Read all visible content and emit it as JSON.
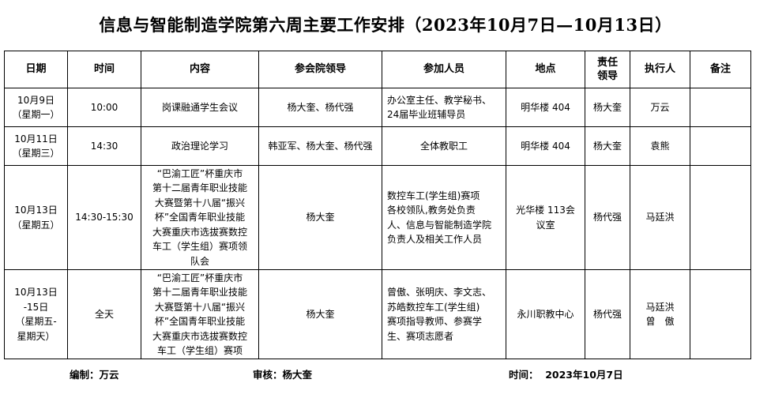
{
  "title": "信息与智能制造学院第六周主要工作安排（2023年10月7日—10月13日）",
  "table": {
    "headers": [
      "日期",
      "时间",
      "内容",
      "参会院领导",
      "参加人员",
      "地点",
      "责任\n领导",
      "执行人",
      "备注"
    ],
    "rows": [
      {
        "date": "10月9日\n（星期一）",
        "time": "10:00",
        "content": "岗课融通学生会议",
        "leaders": "杨大奎、杨代强",
        "participants": "办公室主任、教学秘书、\n24届毕业班辅导员",
        "location": "明华楼 404",
        "responsible": "杨大奎",
        "executor": "万云",
        "note": ""
      },
      {
        "date": "10月11日\n（星期三）",
        "time": "14:30",
        "content": "政治理论学习",
        "leaders": "韩亚军、杨大奎、杨代强",
        "participants": "全体教职工",
        "location": "明华楼 404",
        "responsible": "杨大奎",
        "executor": "袁熊",
        "note": ""
      },
      {
        "date": "10月13日\n（星期五）",
        "time": "14:30-15:30",
        "content": "“巴渝工匠”杯重庆市\n第十二届青年职业技能\n大赛暨第十八届“振兴\n杯”全国青年职业技能\n大赛重庆市选拔赛数控\n车工（学生组）赛项领\n队会",
        "leaders": "杨大奎",
        "participants": "数控车工(学生组)赛项\n各校领队,教务处负责\n人、信息与智能制造学院\n负责人及相关工作人员",
        "location": "光华楼 113会\n议室",
        "responsible": "杨代强",
        "executor": "马廷洪",
        "note": ""
      },
      {
        "date": "10月13日\n-15日\n（星期五-\n星期天）",
        "time": "全天",
        "content": "“巴渝工匠”杯重庆市\n第十二届青年职业技能\n大赛暨第十八届“振兴\n杯”全国青年职业技能\n大赛重庆市选拔赛数控\n车工（学生组）赛项",
        "leaders": "杨大奎",
        "participants": "曾傲、张明庆、李文志、\n苏皓数控车工(学生组)\n赛项指导教师、参赛学\n生、赛项志愿者",
        "location": "永川职教中心",
        "responsible": "杨代强",
        "executor": "马廷洪\n曾　傲",
        "note": ""
      }
    ]
  },
  "footer": {
    "compiler": "编制：万云",
    "reviewer": "审核：杨大奎",
    "date": "时间：  2023年10月7日"
  }
}
